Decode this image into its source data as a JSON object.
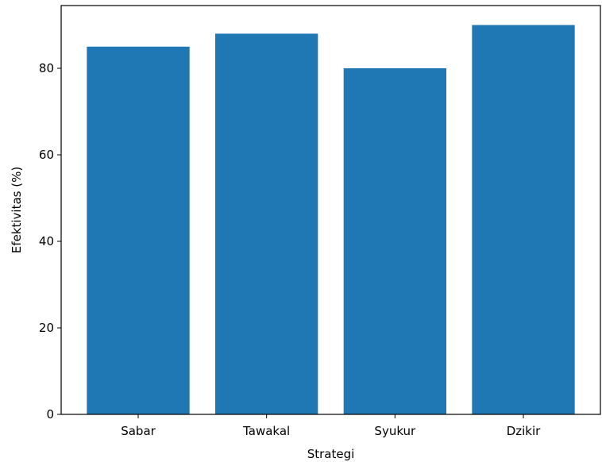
{
  "chart_data": {
    "type": "bar",
    "categories": [
      "Sabar",
      "Tawakal",
      "Syukur",
      "Dzikir"
    ],
    "values": [
      85,
      88,
      80,
      90
    ],
    "xlabel": "Strategi",
    "ylabel": "Efektivitas (%)",
    "ylim": [
      0,
      94.5
    ],
    "yticks": [
      0,
      20,
      40,
      60,
      80
    ],
    "bar_color": "#1f77b4",
    "grid": false,
    "legend": "none"
  }
}
